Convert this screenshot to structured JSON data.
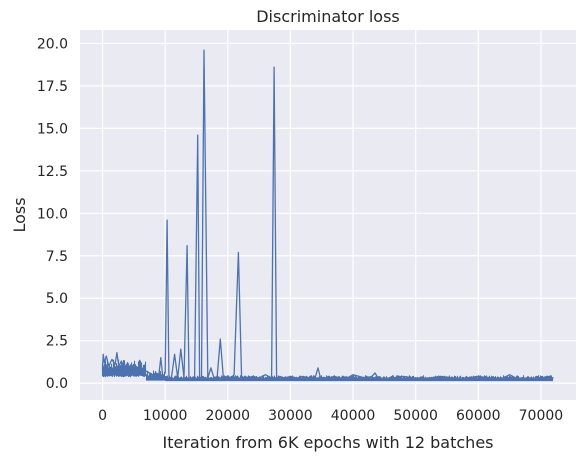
{
  "chart_data": {
    "type": "line",
    "title": "Discriminator loss",
    "xlabel": "Iteration from 6K epochs with 12 batches",
    "ylabel": "Loss",
    "xlim": [
      -3600,
      75600
    ],
    "ylim": [
      -0.99,
      20.79
    ],
    "grid": true,
    "line_color": "#4C72B0",
    "x_ticks": [
      0,
      10000,
      20000,
      30000,
      40000,
      50000,
      60000,
      70000
    ],
    "x_tick_labels": [
      "0",
      "10000",
      "20000",
      "30000",
      "40000",
      "50000",
      "60000",
      "70000"
    ],
    "y_ticks": [
      0.0,
      2.5,
      5.0,
      7.5,
      10.0,
      12.5,
      15.0,
      17.5,
      20.0
    ],
    "y_tick_labels": [
      "0.0",
      "2.5",
      "5.0",
      "7.5",
      "10.0",
      "12.5",
      "15.0",
      "17.5",
      "20.0"
    ],
    "series": [
      {
        "x": [
          0,
          100,
          300,
          600,
          1000,
          1500,
          2000,
          2300,
          2600,
          3000,
          3500,
          4000,
          4500,
          5000,
          5500,
          6000,
          6500,
          7000,
          7500,
          8000,
          8500,
          9000,
          9300,
          9600,
          10000,
          10300,
          10600,
          11000,
          11500,
          12000,
          12500,
          13000,
          13500,
          13800,
          14200,
          14700,
          15200,
          15500,
          15800,
          16200,
          16800,
          17300,
          17800,
          18300,
          18800,
          19300,
          20000,
          20500,
          21000,
          21700,
          22200,
          23000,
          24000,
          25000,
          26000,
          27000,
          27400,
          27800,
          28300,
          29000,
          30000,
          31000,
          32000,
          33000,
          34000,
          34400,
          34800,
          36000,
          37000,
          38000,
          39000,
          40000,
          42000,
          43000,
          43500,
          44000,
          46000,
          48000,
          50000,
          52000,
          54000,
          56000,
          58000,
          60000,
          62000,
          64000,
          65000,
          66000,
          68000,
          70000,
          71000,
          72000
        ],
        "y": [
          0.8,
          1.7,
          1.2,
          1.6,
          1.0,
          1.4,
          1.1,
          1.8,
          1.0,
          1.3,
          0.9,
          1.2,
          0.8,
          1.1,
          0.9,
          1.0,
          0.8,
          0.7,
          0.6,
          0.5,
          0.6,
          0.5,
          1.5,
          0.4,
          0.6,
          9.6,
          0.4,
          0.3,
          1.7,
          0.3,
          2.0,
          0.3,
          8.1,
          0.3,
          0.3,
          0.4,
          14.6,
          0.3,
          0.3,
          19.6,
          0.3,
          0.9,
          0.3,
          0.4,
          2.6,
          0.3,
          0.4,
          0.3,
          0.5,
          7.7,
          0.3,
          0.3,
          0.4,
          0.3,
          0.5,
          0.3,
          18.6,
          0.3,
          0.4,
          0.3,
          0.4,
          0.3,
          0.4,
          0.3,
          0.4,
          0.9,
          0.3,
          0.3,
          0.4,
          0.3,
          0.3,
          0.5,
          0.3,
          0.4,
          0.6,
          0.3,
          0.3,
          0.4,
          0.3,
          0.3,
          0.4,
          0.3,
          0.3,
          0.4,
          0.3,
          0.3,
          0.5,
          0.3,
          0.3,
          0.3,
          0.4,
          0.3
        ]
      }
    ]
  }
}
